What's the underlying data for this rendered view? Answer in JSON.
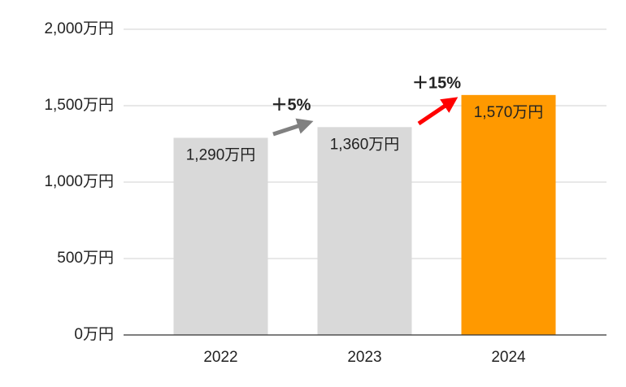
{
  "chart_data": {
    "type": "bar",
    "categories": [
      "2022",
      "2023",
      "2024"
    ],
    "values": [
      1290,
      1360,
      1570
    ],
    "value_labels": [
      "1,290万円",
      "1,360万円",
      "1,570万円"
    ],
    "colors": [
      "#d9d9d9",
      "#d9d9d9",
      "#ff9900"
    ],
    "ylim": [
      0,
      2000
    ],
    "yticks": [
      {
        "value": 0,
        "label": "0万円"
      },
      {
        "value": 500,
        "label": "500万円"
      },
      {
        "value": 1000,
        "label": "1,000万円"
      },
      {
        "value": 1500,
        "label": "1,500万円"
      },
      {
        "value": 2000,
        "label": "2,000万円"
      }
    ],
    "grid": true,
    "annotations": [
      {
        "text": "＋5%",
        "color": "#808080"
      },
      {
        "text": "＋15%",
        "color": "#ff0000"
      }
    ]
  }
}
